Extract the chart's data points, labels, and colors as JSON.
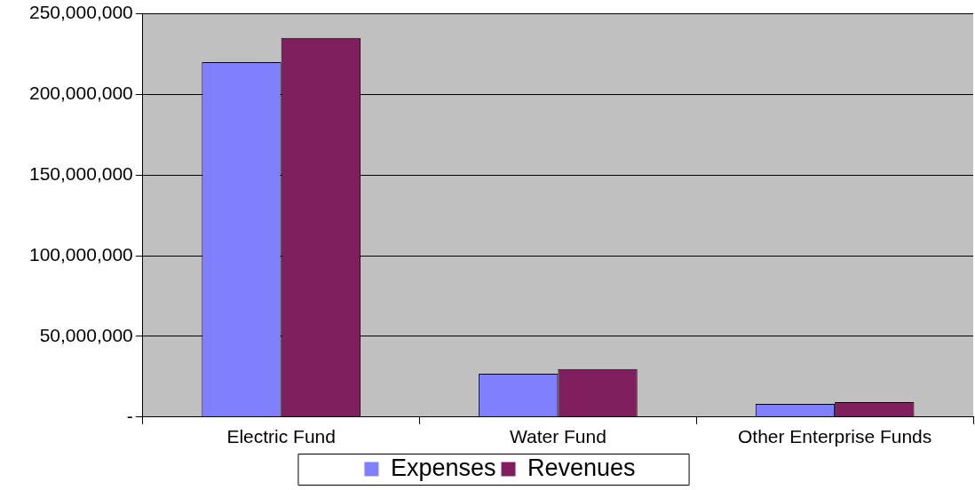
{
  "chart_data": {
    "type": "bar",
    "categories": [
      "Electric Fund",
      "Water Fund",
      "Other Enterprise Funds"
    ],
    "series": [
      {
        "name": "Expenses",
        "color": "#8080ff",
        "values": [
          220000000,
          26800000,
          8100000
        ]
      },
      {
        "name": "Revenues",
        "color": "#801f5e",
        "values": [
          235000000,
          29800000,
          9200000
        ]
      }
    ],
    "ylim": [
      0,
      250000000
    ],
    "yticks": [
      {
        "value": 0,
        "label": "-"
      },
      {
        "value": 50000000,
        "label": "50,000,000"
      },
      {
        "value": 100000000,
        "label": "100,000,000"
      },
      {
        "value": 150000000,
        "label": "150,000,000"
      },
      {
        "value": 200000000,
        "label": "200,000,000"
      },
      {
        "value": 250000000,
        "label": "250,000,000"
      }
    ],
    "grid": "y",
    "legend": "bottom"
  }
}
